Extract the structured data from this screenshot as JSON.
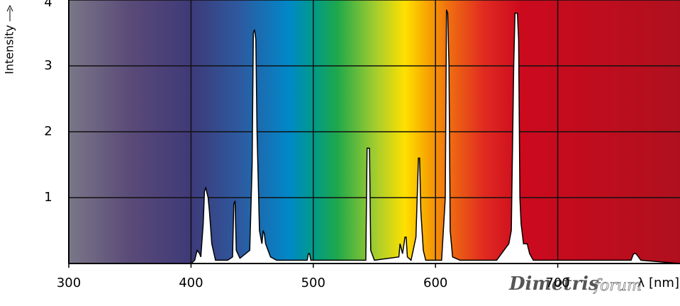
{
  "chart_data": {
    "type": "area",
    "y_label": "Intensity",
    "x_label": "λ [nm]",
    "annotations": [
      "Dimetris",
      "forum"
    ],
    "x": [
      300,
      400,
      403,
      405,
      407,
      408,
      410,
      411,
      412,
      414,
      415,
      417,
      420,
      430,
      434,
      435,
      436,
      437,
      440,
      448,
      450,
      451,
      452,
      453,
      454,
      456,
      458,
      459,
      460,
      461,
      465,
      470,
      495,
      496,
      497,
      498,
      520,
      543,
      544,
      546,
      547,
      550,
      570,
      571,
      573,
      575,
      576,
      577,
      580,
      584,
      586,
      587,
      588,
      590,
      592,
      605,
      608,
      609,
      610,
      611,
      612,
      614,
      620,
      650,
      660,
      662,
      664,
      665,
      667,
      668,
      669,
      670,
      672,
      675,
      677,
      680,
      700,
      760,
      762,
      764,
      766,
      768,
      800
    ],
    "values": [
      0,
      0,
      0.05,
      0.2,
      0.15,
      0.1,
      0.6,
      1.1,
      1.15,
      1.0,
      0.8,
      0.3,
      0.05,
      0.05,
      0.1,
      0.9,
      0.95,
      0.2,
      0.08,
      0.2,
      1.5,
      3.5,
      3.55,
      3.4,
      2.0,
      0.5,
      0.3,
      0.5,
      0.45,
      0.3,
      0.1,
      0.05,
      0.05,
      0.15,
      0.15,
      0.05,
      0.05,
      0.05,
      1.75,
      1.75,
      0.2,
      0.05,
      0.1,
      0.3,
      0.15,
      0.4,
      0.4,
      0.1,
      0.05,
      0.4,
      1.6,
      1.6,
      0.8,
      0.2,
      0.05,
      0.05,
      1.0,
      3.85,
      3.8,
      3.0,
      0.5,
      0.1,
      0.05,
      0.05,
      0.3,
      0.5,
      3.0,
      3.8,
      3.8,
      3.4,
      1.0,
      0.6,
      0.3,
      0.3,
      0.15,
      0.05,
      0.05,
      0.05,
      0.15,
      0.15,
      0.1,
      0.05,
      0
    ],
    "fill": "#ffffff",
    "line_color": "#000000",
    "xlim": [
      300,
      800
    ],
    "ylim": [
      0,
      4
    ],
    "xticks": [
      300,
      400,
      500,
      600,
      700
    ],
    "yticks": [
      1,
      2,
      3,
      4
    ],
    "grid": true
  }
}
